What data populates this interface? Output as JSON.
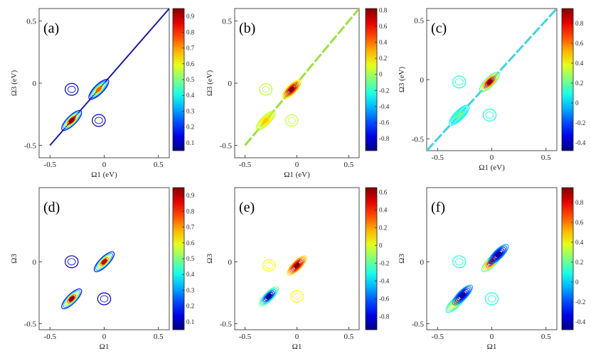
{
  "chart_data": [
    {
      "type": "contour",
      "panel_label": "(a)",
      "xlabel": "Ω1 (eV)",
      "ylabel": "Ω3 (eV)",
      "xticks": [
        -0.5,
        0,
        0.5
      ],
      "yticks": [
        -0.5,
        0,
        0.5
      ],
      "xlim": [
        -0.6,
        0.6
      ],
      "ylim": [
        -0.6,
        0.6
      ],
      "colorbar": {
        "min": 0.05,
        "max": 0.95,
        "ticks": [
          0.1,
          0.2,
          0.3,
          0.4,
          0.5,
          0.6,
          0.7,
          0.8,
          0.9
        ]
      },
      "diagonal": {
        "from": -0.5,
        "to": 0.6,
        "color": "#1a1aa0",
        "dash": false,
        "width": 2
      },
      "peaks": [
        {
          "x": -0.3,
          "y": -0.3,
          "amplitude": 0.95
        },
        {
          "x": -0.05,
          "y": -0.05,
          "amplitude": 0.75
        }
      ],
      "cross_peaks": [
        {
          "x": -0.3,
          "y": -0.05,
          "amplitude": 0.1
        },
        {
          "x": -0.05,
          "y": -0.3,
          "amplitude": 0.1
        }
      ]
    },
    {
      "type": "contour",
      "panel_label": "(b)",
      "xlabel": "Ω1 (eV)",
      "ylabel": "Ω3 (eV)",
      "xticks": [
        -0.5,
        0,
        0.5
      ],
      "yticks": [
        -0.5,
        0,
        0.5
      ],
      "xlim": [
        -0.6,
        0.6
      ],
      "ylim": [
        -0.6,
        0.6
      ],
      "colorbar": {
        "min": -0.95,
        "max": 0.82,
        "ticks": [
          -0.8,
          -0.6,
          -0.4,
          -0.2,
          0,
          0.2,
          0.4,
          0.6,
          0.8
        ]
      },
      "diagonal": {
        "from": -0.5,
        "to": 0.6,
        "color": "#9be13a",
        "dash": true,
        "width": 3
      },
      "peaks": [
        {
          "x": -0.3,
          "y": -0.3,
          "amplitude": 0.25
        },
        {
          "x": -0.05,
          "y": -0.05,
          "amplitude": 0.82
        }
      ],
      "cross_peaks": [
        {
          "x": -0.3,
          "y": -0.05,
          "amplitude": 0.05
        },
        {
          "x": -0.05,
          "y": -0.3,
          "amplitude": 0.05
        }
      ]
    },
    {
      "type": "contour",
      "panel_label": "(c)",
      "xlabel": "Ω1 (eV)",
      "ylabel": "Ω3 (eV)",
      "xticks": [
        -0.5,
        0,
        0.5
      ],
      "yticks": [
        -0.5,
        0,
        0.5
      ],
      "xlim": [
        -0.6,
        0.6
      ],
      "ylim": [
        -0.6,
        0.6
      ],
      "colorbar": {
        "min": -0.48,
        "max": 0.95,
        "ticks": [
          -0.4,
          -0.2,
          0,
          0.2,
          0.4,
          0.6,
          0.8
        ]
      },
      "diagonal": {
        "from": -0.6,
        "to": 0.6,
        "color": "#3fd3e0",
        "dash": true,
        "width": 3
      },
      "peaks": [
        {
          "x": -0.3,
          "y": -0.3,
          "amplitude": 0.2
        },
        {
          "x": -0.02,
          "y": -0.02,
          "amplitude": 0.95
        }
      ],
      "cross_peaks": [
        {
          "x": -0.3,
          "y": -0.02,
          "amplitude": 0.1
        },
        {
          "x": -0.02,
          "y": -0.3,
          "amplitude": 0.1
        }
      ]
    },
    {
      "type": "contour",
      "panel_label": "(d)",
      "xlabel": "Ω1",
      "ylabel": "Ω3",
      "xticks": [
        -0.5,
        0,
        0.5
      ],
      "yticks": [
        -0.5,
        0
      ],
      "xlim": [
        -0.6,
        0.6
      ],
      "ylim": [
        -0.55,
        0.6
      ],
      "colorbar": {
        "min": 0.05,
        "max": 0.95,
        "ticks": [
          0.1,
          0.2,
          0.3,
          0.4,
          0.5,
          0.6,
          0.7,
          0.8,
          0.9
        ]
      },
      "peaks": [
        {
          "x": -0.3,
          "y": -0.3,
          "amplitude": 0.95
        },
        {
          "x": 0.0,
          "y": 0.0,
          "amplitude": 0.9
        }
      ],
      "cross_peaks": [
        {
          "x": -0.3,
          "y": 0.0,
          "amplitude": 0.1
        },
        {
          "x": 0.0,
          "y": -0.3,
          "amplitude": 0.1
        }
      ]
    },
    {
      "type": "contour",
      "panel_label": "(e)",
      "xlabel": "Ω1",
      "ylabel": "Ω3",
      "xticks": [
        -0.5,
        0,
        0.5
      ],
      "yticks": [
        -0.5,
        0
      ],
      "xlim": [
        -0.6,
        0.6
      ],
      "ylim": [
        -0.55,
        0.6
      ],
      "colorbar": {
        "min": -0.95,
        "max": 0.65,
        "ticks": [
          -0.8,
          -0.6,
          -0.4,
          -0.2,
          0,
          0.2,
          0.4,
          0.6
        ]
      },
      "peaks": [
        {
          "x": -0.27,
          "y": -0.28,
          "amplitude": -0.95
        },
        {
          "x": 0.0,
          "y": -0.03,
          "amplitude": 0.65
        }
      ],
      "cross_peaks": [
        {
          "x": -0.27,
          "y": -0.03,
          "amplitude": 0.05
        },
        {
          "x": 0.0,
          "y": -0.28,
          "amplitude": 0.05
        }
      ]
    },
    {
      "type": "contour",
      "panel_label": "(f)",
      "xlabel": "Ω1",
      "ylabel": "Ω3",
      "xticks": [
        -0.5,
        0,
        0.5
      ],
      "yticks": [
        -0.5,
        0
      ],
      "xlim": [
        -0.6,
        0.6
      ],
      "ylim": [
        -0.55,
        0.6
      ],
      "colorbar": {
        "min": -0.48,
        "max": 0.95,
        "ticks": [
          -0.4,
          -0.2,
          0,
          0.2,
          0.4,
          0.6,
          0.8
        ]
      },
      "peaks": [
        {
          "x": -0.33,
          "y": -0.33,
          "amplitude": 0.5
        },
        {
          "x": -0.27,
          "y": -0.27,
          "amplitude": -0.45
        },
        {
          "x": 0.0,
          "y": 0.0,
          "amplitude": 0.95
        },
        {
          "x": 0.06,
          "y": 0.06,
          "amplitude": -0.45
        }
      ],
      "cross_peaks": [
        {
          "x": -0.3,
          "y": 0.0,
          "amplitude": 0.1
        },
        {
          "x": 0.0,
          "y": -0.3,
          "amplitude": 0.1
        }
      ]
    }
  ]
}
